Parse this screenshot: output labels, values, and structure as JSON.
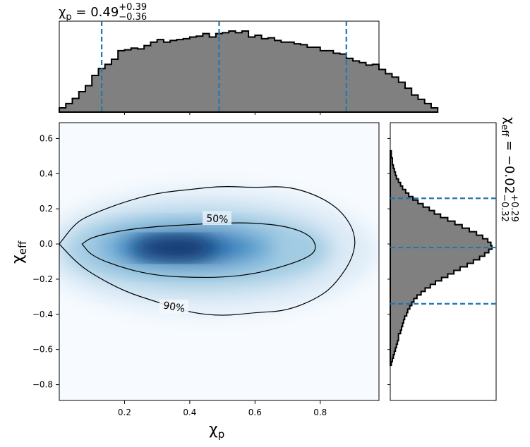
{
  "top_title": {
    "symbol": "χ",
    "sub": "p",
    "eq": " = 0.49",
    "sup": "+0.39",
    "low": "−0.36"
  },
  "right_title": {
    "symbol": "χ",
    "sub": "eff",
    "eq": " = −0.02",
    "sup": "+0.29",
    "low": "−0.32"
  },
  "axes": {
    "xlabel": {
      "symbol": "χ",
      "sub": "p"
    },
    "ylabel": {
      "symbol": "χ",
      "sub": "eff"
    },
    "xticks": [
      0.2,
      0.4,
      0.6,
      0.8
    ],
    "xtick_labels": [
      "0.2",
      "0.4",
      "0.6",
      "0.8"
    ],
    "yticks": [
      0.6,
      0.4,
      0.2,
      0.0,
      -0.2,
      -0.4,
      -0.6,
      -0.8
    ],
    "ytick_labels": [
      "0.6",
      "0.4",
      "0.2",
      "0.0",
      "−0.2",
      "−0.4",
      "−0.6",
      "−0.8"
    ]
  },
  "contour_labels": [
    "50%",
    "90%"
  ],
  "colors": {
    "hist_fill": "#808080",
    "quantile_line": "#1f77b4",
    "density_cmap": "Blues"
  },
  "chart_data": [
    {
      "type": "heatmap",
      "title": "",
      "xlabel": "χp",
      "ylabel": "χeff",
      "xlim": [
        0.0,
        0.98
      ],
      "ylim": [
        -0.89,
        0.69
      ],
      "density_peak": {
        "x": 0.37,
        "y": -0.02
      },
      "contours": [
        {
          "label": "50%",
          "x": [
            0.07,
            0.1,
            0.2,
            0.3,
            0.4,
            0.5,
            0.6,
            0.7,
            0.77,
            0.79,
            0.77,
            0.7,
            0.6,
            0.5,
            0.4,
            0.3,
            0.2,
            0.1,
            0.07
          ],
          "y": [
            0.0,
            0.04,
            0.08,
            0.1,
            0.11,
            0.12,
            0.12,
            0.1,
            0.05,
            -0.02,
            -0.07,
            -0.12,
            -0.17,
            -0.19,
            -0.19,
            -0.18,
            -0.14,
            -0.07,
            0.0
          ]
        },
        {
          "label": "90%",
          "x": [
            0.0,
            0.05,
            0.1,
            0.2,
            0.3,
            0.4,
            0.5,
            0.6,
            0.7,
            0.8,
            0.87,
            0.91,
            0.9,
            0.85,
            0.8,
            0.7,
            0.6,
            0.5,
            0.4,
            0.3,
            0.2,
            0.1,
            0.05,
            0.0
          ],
          "y": [
            0.0,
            0.12,
            0.17,
            0.24,
            0.29,
            0.31,
            0.33,
            0.32,
            0.33,
            0.27,
            0.18,
            0.05,
            -0.08,
            -0.22,
            -0.3,
            -0.38,
            -0.39,
            -0.41,
            -0.39,
            -0.33,
            -0.27,
            -0.17,
            -0.1,
            0.0
          ]
        }
      ]
    },
    {
      "type": "bar",
      "title": "χp = 0.49 +0.39 −0.36",
      "xlabel": "χp",
      "ylabel": "",
      "xlim": [
        0.0,
        0.98
      ],
      "bin_width": 0.02,
      "bin_edges_start": 0.0,
      "values": [
        0.05,
        0.1,
        0.16,
        0.24,
        0.31,
        0.43,
        0.51,
        0.56,
        0.62,
        0.72,
        0.73,
        0.75,
        0.74,
        0.78,
        0.82,
        0.85,
        0.82,
        0.84,
        0.85,
        0.86,
        0.88,
        0.89,
        0.92,
        0.88,
        0.92,
        0.93,
        0.95,
        0.93,
        0.95,
        0.88,
        0.9,
        0.86,
        0.87,
        0.84,
        0.82,
        0.82,
        0.8,
        0.79,
        0.76,
        0.76,
        0.72,
        0.72,
        0.69,
        0.68,
        0.63,
        0.6,
        0.58,
        0.55,
        0.56,
        0.5,
        0.45,
        0.41,
        0.35,
        0.28,
        0.2,
        0.15,
        0.1,
        0.05
      ],
      "quantiles": [
        0.13,
        0.49,
        0.88
      ]
    },
    {
      "type": "bar",
      "orientation": "horizontal",
      "title": "χeff = −0.02 +0.29 −0.32",
      "xlabel": "",
      "ylabel": "χeff",
      "ylim": [
        -0.89,
        0.69
      ],
      "bin_width": 0.02,
      "bin_edges_start": -0.69,
      "values": [
        0.01,
        0.02,
        0.03,
        0.04,
        0.05,
        0.06,
        0.07,
        0.08,
        0.08,
        0.1,
        0.11,
        0.12,
        0.13,
        0.14,
        0.16,
        0.17,
        0.19,
        0.21,
        0.23,
        0.26,
        0.3,
        0.34,
        0.39,
        0.44,
        0.5,
        0.56,
        0.62,
        0.68,
        0.75,
        0.81,
        0.87,
        0.92,
        0.96,
        0.99,
        0.98,
        0.95,
        0.9,
        0.84,
        0.77,
        0.7,
        0.63,
        0.56,
        0.49,
        0.43,
        0.38,
        0.32,
        0.27,
        0.22,
        0.18,
        0.15,
        0.12,
        0.1,
        0.08,
        0.06,
        0.05,
        0.04,
        0.03,
        0.02,
        0.02,
        0.01,
        0.01
      ],
      "quantiles": [
        -0.34,
        -0.02,
        0.26
      ]
    }
  ]
}
